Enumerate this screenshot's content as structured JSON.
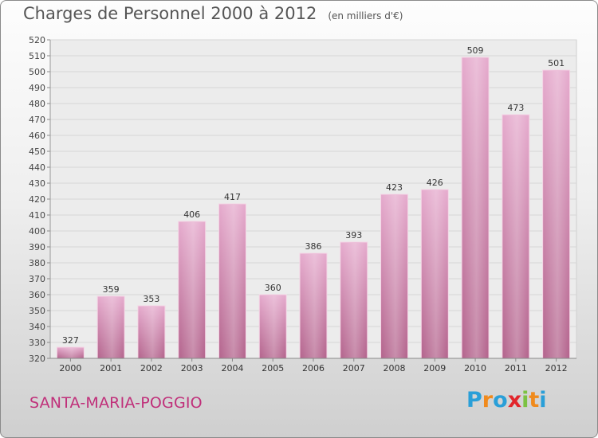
{
  "title": "Charges de Personnel 2000 à 2012",
  "unit_note": "(en milliers d'€)",
  "commune": "SANTA-MARIA-POGGIO",
  "logo": {
    "letters": [
      "P",
      "r",
      "o",
      "x",
      "i",
      "t",
      "i"
    ],
    "colors": [
      "#2a9fd8",
      "#f08a1c",
      "#2a9fd8",
      "#e2262c",
      "#7cc242",
      "#f08a1c",
      "#2a9fd8"
    ]
  },
  "colors": {
    "bar": "#c77aa4",
    "bar_light": "#e3a9cb",
    "title": "#555555",
    "commune": "#c0307a"
  },
  "chart_data": {
    "type": "bar",
    "title": "Charges de Personnel 2000 à 2012",
    "xlabel": "",
    "ylabel": "",
    "categories": [
      "2000",
      "2001",
      "2002",
      "2003",
      "2004",
      "2005",
      "2006",
      "2007",
      "2008",
      "2009",
      "2010",
      "2011",
      "2012"
    ],
    "values": [
      327,
      359,
      353,
      406,
      417,
      360,
      386,
      393,
      423,
      426,
      509,
      473,
      501
    ],
    "ylim": [
      320,
      520
    ],
    "ytick_step": 10,
    "grid": true,
    "data_labels": true
  }
}
